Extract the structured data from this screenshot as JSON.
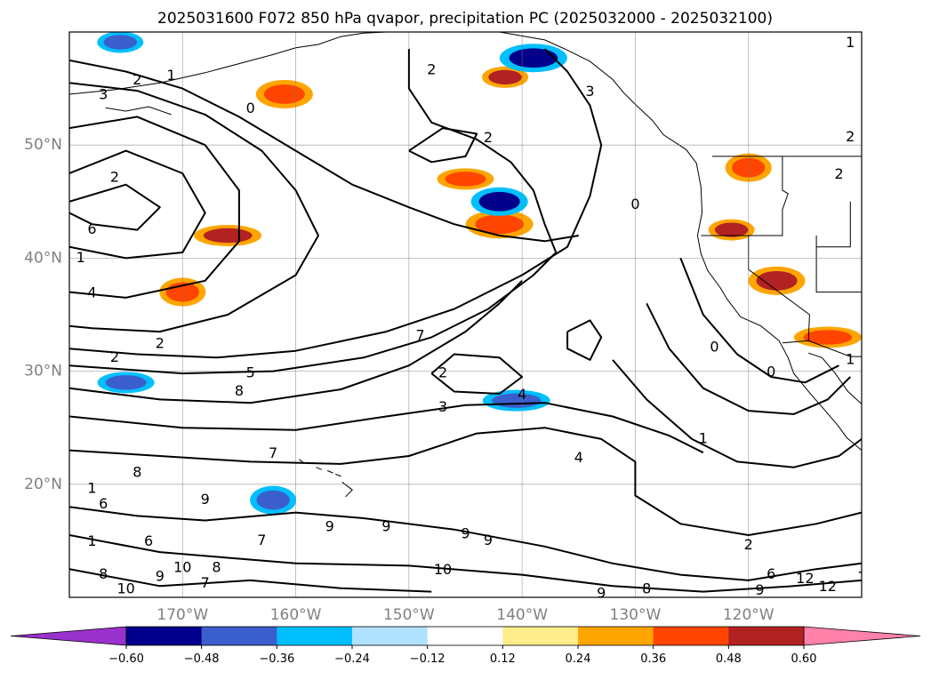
{
  "chart_data": {
    "type": "heatmap",
    "title": "2025031600 F072 850 hPa qvapor, precipitation PC (2025032000 - 2025032100)",
    "map": {
      "region": "North Pacific / North America west coast",
      "lon_range": [
        -180,
        -110
      ],
      "lat_range": [
        10,
        60
      ],
      "gridlines": true,
      "lat_ticks": [
        {
          "value": 50,
          "label": "50°N"
        },
        {
          "value": 40,
          "label": "40°N"
        },
        {
          "value": 30,
          "label": "30°N"
        },
        {
          "value": 20,
          "label": "20°N"
        }
      ],
      "lon_ticks": [
        {
          "value": -170,
          "label": "170°W"
        },
        {
          "value": -160,
          "label": "160°W"
        },
        {
          "value": -150,
          "label": "150°W"
        },
        {
          "value": -140,
          "label": "140°W"
        },
        {
          "value": -130,
          "label": "130°W"
        },
        {
          "value": -120,
          "label": "120°W"
        }
      ]
    },
    "colorbar": {
      "extend": "both",
      "levels": [
        -0.6,
        -0.48,
        -0.36,
        -0.24,
        -0.12,
        0.12,
        0.24,
        0.36,
        0.48,
        0.6
      ],
      "tick_labels": [
        "−0.60",
        "−0.48",
        "−0.36",
        "−0.24",
        "−0.12",
        "0.12",
        "0.24",
        "0.36",
        "0.48",
        "0.60"
      ],
      "colors": [
        "#9932cc",
        "#00008b",
        "#3a5fcd",
        "#00bfff",
        "#b0e2ff",
        "#ffffff",
        "#ffec8b",
        "#ffa500",
        "#ff4500",
        "#b22222",
        "#ff82ab"
      ]
    },
    "contours": {
      "variable": "850 hPa qvapor",
      "labels": [
        {
          "lon": -174,
          "lat": 55.7,
          "text": "2"
        },
        {
          "lon": -171,
          "lat": 56.1,
          "text": "1"
        },
        {
          "lon": -177,
          "lat": 54.4,
          "text": "3"
        },
        {
          "lon": -164,
          "lat": 53.2,
          "text": "0"
        },
        {
          "lon": -148,
          "lat": 56.6,
          "text": "2"
        },
        {
          "lon": -134,
          "lat": 54.7,
          "text": "3"
        },
        {
          "lon": -143,
          "lat": 50.6,
          "text": "2"
        },
        {
          "lon": -176,
          "lat": 47.1,
          "text": "2"
        },
        {
          "lon": -178,
          "lat": 42.5,
          "text": "6"
        },
        {
          "lon": -179,
          "lat": 40.0,
          "text": "1"
        },
        {
          "lon": -178,
          "lat": 36.9,
          "text": "4"
        },
        {
          "lon": -176,
          "lat": 31.2,
          "text": "2"
        },
        {
          "lon": -172,
          "lat": 32.4,
          "text": "2"
        },
        {
          "lon": -164,
          "lat": 29.8,
          "text": "5"
        },
        {
          "lon": -165,
          "lat": 28.2,
          "text": "8"
        },
        {
          "lon": -149,
          "lat": 33.1,
          "text": "7"
        },
        {
          "lon": -147,
          "lat": 29.8,
          "text": "2"
        },
        {
          "lon": -147,
          "lat": 26.8,
          "text": "3"
        },
        {
          "lon": -140,
          "lat": 27.9,
          "text": "4"
        },
        {
          "lon": -123,
          "lat": 32.1,
          "text": "0"
        },
        {
          "lon": -118,
          "lat": 29.9,
          "text": "0"
        },
        {
          "lon": -124,
          "lat": 24.0,
          "text": "1"
        },
        {
          "lon": -135,
          "lat": 22.3,
          "text": "4"
        },
        {
          "lon": -162,
          "lat": 22.7,
          "text": "7"
        },
        {
          "lon": -174,
          "lat": 21.0,
          "text": "8"
        },
        {
          "lon": -178,
          "lat": 19.6,
          "text": "1"
        },
        {
          "lon": -177,
          "lat": 18.2,
          "text": "6"
        },
        {
          "lon": -168,
          "lat": 18.6,
          "text": "9"
        },
        {
          "lon": -163,
          "lat": 15.0,
          "text": "7"
        },
        {
          "lon": -157,
          "lat": 16.2,
          "text": "9"
        },
        {
          "lon": -152,
          "lat": 16.2,
          "text": "9"
        },
        {
          "lon": -145,
          "lat": 15.6,
          "text": "9"
        },
        {
          "lon": -143,
          "lat": 15.0,
          "text": "9"
        },
        {
          "lon": -178,
          "lat": 14.9,
          "text": "1"
        },
        {
          "lon": -173,
          "lat": 14.9,
          "text": "6"
        },
        {
          "lon": -170,
          "lat": 12.6,
          "text": "10"
        },
        {
          "lon": -167,
          "lat": 12.6,
          "text": "8"
        },
        {
          "lon": -177,
          "lat": 12.0,
          "text": "8"
        },
        {
          "lon": -175,
          "lat": 10.7,
          "text": "10"
        },
        {
          "lon": -172,
          "lat": 11.8,
          "text": "9"
        },
        {
          "lon": -168,
          "lat": 11.2,
          "text": "7"
        },
        {
          "lon": -147,
          "lat": 12.4,
          "text": "10"
        },
        {
          "lon": -120,
          "lat": 14.6,
          "text": "2"
        },
        {
          "lon": -118,
          "lat": 12.0,
          "text": "6"
        },
        {
          "lon": -115,
          "lat": 11.6,
          "text": "12"
        },
        {
          "lon": -113,
          "lat": 10.9,
          "text": "12"
        },
        {
          "lon": -110,
          "lat": 12.5,
          "text": "1"
        },
        {
          "lon": -119,
          "lat": 10.6,
          "text": "9"
        },
        {
          "lon": -129,
          "lat": 10.7,
          "text": "8"
        },
        {
          "lon": -133,
          "lat": 10.3,
          "text": "9"
        },
        {
          "lon": -111,
          "lat": 59.0,
          "text": "1"
        },
        {
          "lon": -111,
          "lat": 50.7,
          "text": "2"
        },
        {
          "lon": -112,
          "lat": 47.4,
          "text": "2"
        },
        {
          "lon": -130,
          "lat": 44.7,
          "text": "0"
        },
        {
          "lon": -111,
          "lat": 31.0,
          "text": "1"
        }
      ]
    },
    "precip_pc_features": [
      {
        "lon": -141.5,
        "lat": 56.0,
        "value": 0.55
      },
      {
        "lon": -161.0,
        "lat": 54.5,
        "value": 0.42
      },
      {
        "lon": -166.0,
        "lat": 42.0,
        "value": 0.55
      },
      {
        "lon": -170.0,
        "lat": 37.0,
        "value": 0.42
      },
      {
        "lon": -145.0,
        "lat": 47.0,
        "value": 0.42
      },
      {
        "lon": -142.0,
        "lat": 43.0,
        "value": 0.42
      },
      {
        "lon": -121.5,
        "lat": 42.5,
        "value": 0.55
      },
      {
        "lon": -117.5,
        "lat": 38.0,
        "value": 0.55
      },
      {
        "lon": -113.0,
        "lat": 33.0,
        "value": 0.42
      },
      {
        "lon": -120.0,
        "lat": 48.0,
        "value": 0.42
      },
      {
        "lon": -175.0,
        "lat": 29.0,
        "value": -0.42
      },
      {
        "lon": -139.0,
        "lat": 57.7,
        "value": -0.54
      },
      {
        "lon": -175.5,
        "lat": 59.1,
        "value": -0.42
      },
      {
        "lon": -142.0,
        "lat": 45.0,
        "value": -0.54
      },
      {
        "lon": -140.5,
        "lat": 27.4,
        "value": -0.42
      },
      {
        "lon": -162.0,
        "lat": 18.6,
        "value": -0.42
      }
    ]
  }
}
